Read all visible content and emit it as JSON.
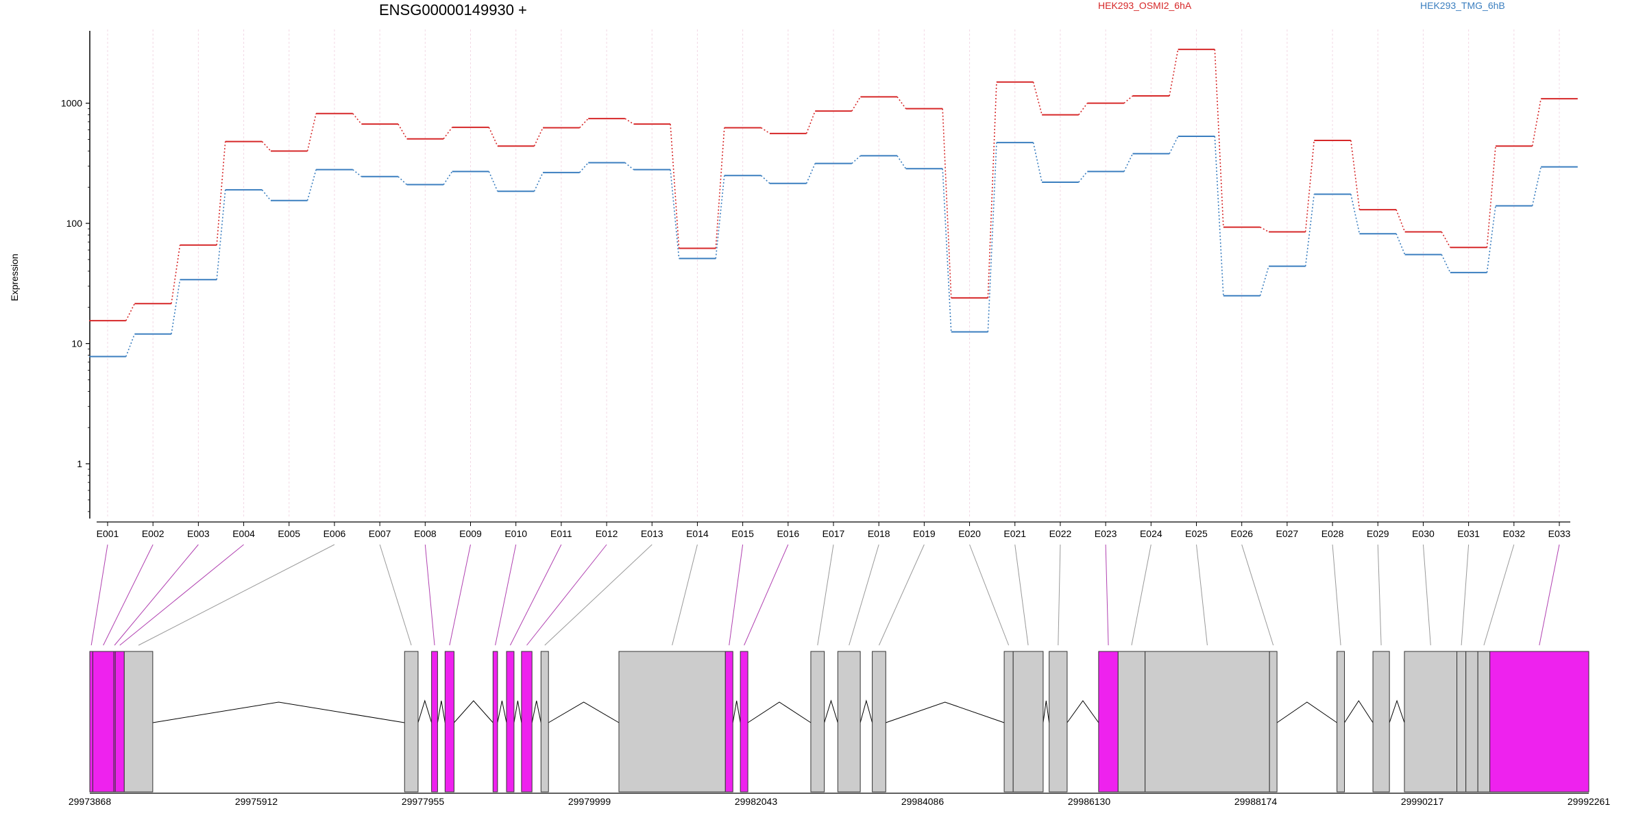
{
  "header": {
    "gene_title": "ENSG00000149930 +"
  },
  "colors": {
    "series_1": "#d62728",
    "series_2": "#3a7ebf",
    "exon_highlight": "#ee22ee",
    "exon_default": "#cccccc",
    "connector_highlight": "#b040b0",
    "connector_default": "#999999",
    "gridline": "#f2d8e4"
  },
  "chart_data": {
    "type": "line",
    "title": "ENSG00000149930 +",
    "ylabel": "Expression",
    "xlabel": "",
    "yscale": "log",
    "ylim": [
      0.35,
      4000
    ],
    "yticks": [
      1,
      10,
      100,
      1000
    ],
    "ytick_labels": [
      "1",
      "10",
      "100",
      "1000"
    ],
    "grid": "vertical dotted lines at exon positions",
    "legend_position": "top",
    "categories": [
      "E001",
      "E002",
      "E003",
      "E004",
      "E005",
      "E006",
      "E007",
      "E008",
      "E009",
      "E010",
      "E011",
      "E012",
      "E013",
      "E014",
      "E015",
      "E016",
      "E017",
      "E018",
      "E019",
      "E020",
      "E021",
      "E022",
      "E023",
      "E024",
      "E025",
      "E026",
      "E027",
      "E028",
      "E029",
      "E030",
      "E031",
      "E032",
      "E033"
    ],
    "series": [
      {
        "name": "HEK293_OSMI2_6hA",
        "color": "#d62728",
        "values": [
          15.5,
          21.5,
          66,
          480,
          400,
          820,
          670,
          505,
          630,
          440,
          625,
          745,
          670,
          62,
          625,
          560,
          860,
          1130,
          900,
          24,
          1500,
          800,
          1000,
          1150,
          2800,
          93,
          85,
          490,
          130,
          85,
          63,
          440,
          1090
        ]
      },
      {
        "name": "HEK293_TMG_6hB",
        "color": "#3a7ebf",
        "values": [
          7.8,
          12,
          34,
          190,
          155,
          280,
          245,
          210,
          270,
          185,
          265,
          320,
          280,
          51,
          250,
          215,
          315,
          365,
          285,
          12.5,
          470,
          220,
          270,
          380,
          530,
          25,
          44,
          175,
          82,
          55,
          39,
          140,
          295
        ]
      }
    ],
    "genomic_axis_labels": [
      "29973868",
      "29975912",
      "29977955",
      "29979999",
      "29982043",
      "29984086",
      "29986130",
      "29988174",
      "29990217",
      "29992261"
    ],
    "highlighted_exons": [
      "E001",
      "E002",
      "E003",
      "E004",
      "E005",
      "E008",
      "E009",
      "E010",
      "E011",
      "E012",
      "E015",
      "E016",
      "E023",
      "E033"
    ]
  }
}
